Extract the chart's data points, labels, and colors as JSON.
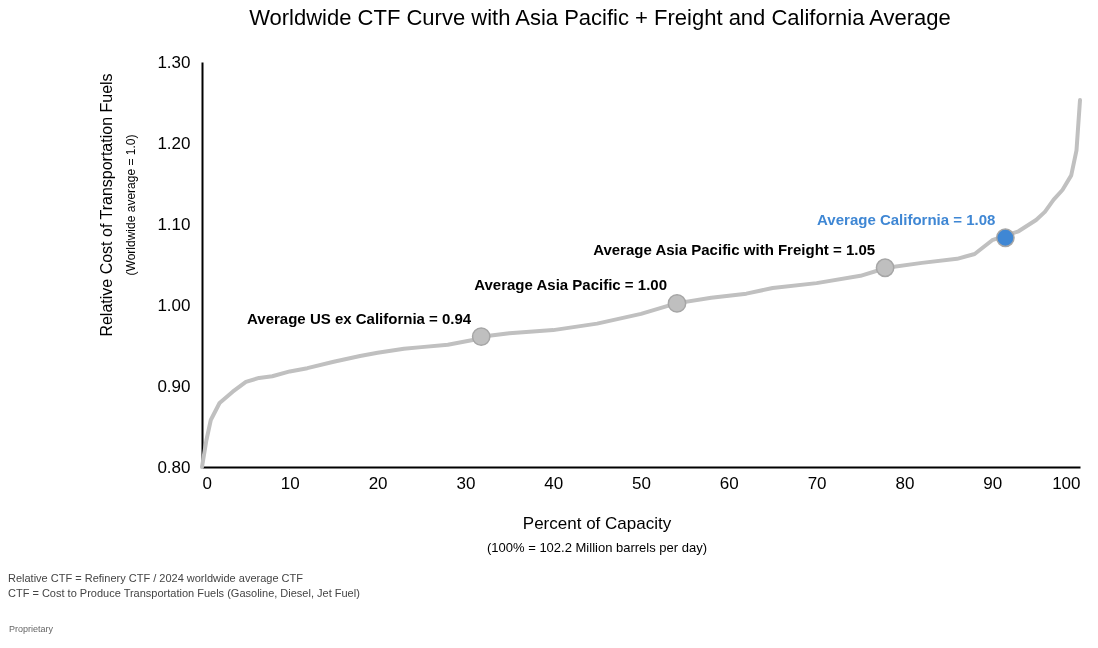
{
  "chart_data": {
    "type": "line",
    "title": "Worldwide CTF Curve with Asia Pacific + Freight and California Average",
    "xlabel": "Percent of Capacity",
    "ylabel": "Relative Cost of Transportation Fuels",
    "xlim": [
      0,
      100
    ],
    "xticks": [
      0,
      10,
      20,
      30,
      40,
      50,
      60,
      70,
      80,
      90,
      100
    ],
    "ylim": [
      0.8,
      1.3
    ],
    "yticks": [
      {
        "value": 0.8,
        "label": "0.80"
      },
      {
        "value": 0.9,
        "label": "0.90"
      },
      {
        "value": 1.0,
        "label": "1.00"
      },
      {
        "value": 1.1,
        "label": "1.10"
      },
      {
        "value": 1.2,
        "label": "1.20"
      },
      {
        "value": 1.3,
        "label": "1.30"
      }
    ],
    "grid": false,
    "marker": "none",
    "line_style": "solid",
    "series": [
      {
        "color": "#c0c0c0",
        "x": [
          0,
          0.5,
          1,
          2,
          3.5,
          5,
          6.5,
          8,
          10,
          12,
          15,
          18,
          20,
          23,
          25,
          28,
          31,
          32,
          35,
          40,
          45,
          50,
          54,
          58,
          62,
          65,
          70,
          75,
          78,
          82,
          86,
          88,
          90,
          93,
          95,
          96,
          97,
          98,
          99,
          99.6,
          100
        ],
        "values": [
          0.8,
          0.833,
          0.858,
          0.879,
          0.893,
          0.905,
          0.91,
          0.912,
          0.918,
          0.922,
          0.93,
          0.937,
          0.941,
          0.946,
          0.948,
          0.951,
          0.957,
          0.961,
          0.965,
          0.969,
          0.977,
          0.989,
          1.002,
          1.009,
          1.014,
          1.021,
          1.027,
          1.036,
          1.046,
          1.052,
          1.057,
          1.063,
          1.08,
          1.091,
          1.105,
          1.115,
          1.13,
          1.142,
          1.16,
          1.191,
          1.253
        ]
      },
      {
        "type": "scatter",
        "marker": "circle",
        "x": [
          31.8,
          54.1,
          77.8,
          91.5
        ],
        "values": [
          0.961,
          1.002,
          1.046,
          1.083
        ],
        "colors": [
          "#bfbfbf",
          "#bfbfbf",
          "#bfbfbf",
          "#3f87d4"
        ]
      }
    ],
    "annotations": [
      {
        "text": "Average US ex California = 0.94",
        "x": 31.8,
        "y": 0.961
      },
      {
        "text": "Average Asia Pacific = 1.00",
        "x": 54.1,
        "y": 1.002
      },
      {
        "text": "Average Asia Pacific with Freight = 1.05",
        "x": 77.8,
        "y": 1.046
      },
      {
        "text": "Average California = 1.08",
        "x": 91.5,
        "y": 1.083
      },
      "(100% = 102.2 Million barrels per day)",
      "(Worldwide average = 1.0)",
      "Relative CTF = Refinery CTF / 2024 worldwide average CTF",
      "CTF = Cost to Produce Transportation Fuels (Gasoline, Diesel, Jet Fuel)",
      "Proprietary"
    ]
  }
}
